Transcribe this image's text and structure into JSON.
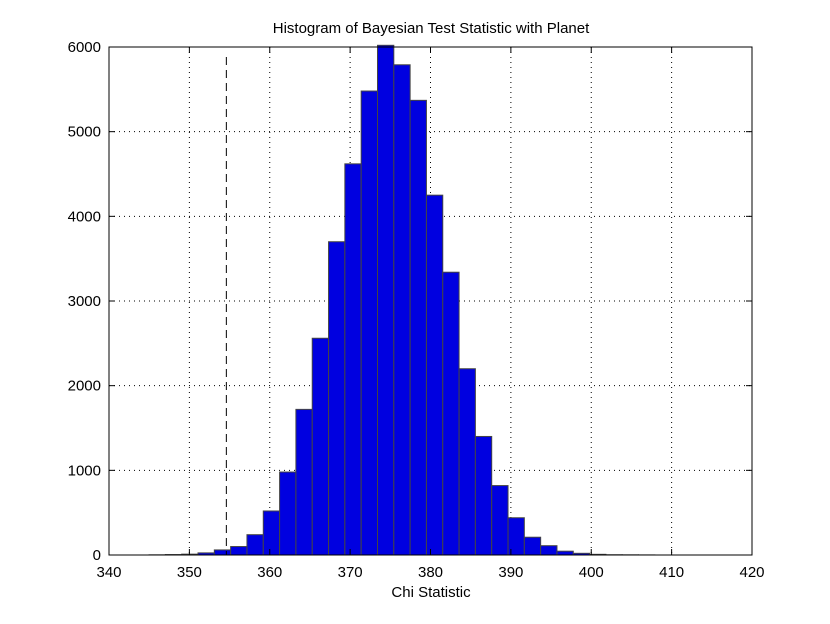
{
  "chart_data": {
    "type": "bar",
    "title": "Histogram of Bayesian Test Statistic with Planet",
    "xlabel": "Chi Statistic",
    "ylabel": "",
    "xlim": [
      340,
      420
    ],
    "ylim": [
      0,
      6000
    ],
    "xticks": [
      340,
      350,
      360,
      370,
      380,
      390,
      400,
      410,
      420
    ],
    "yticks": [
      0,
      1000,
      2000,
      3000,
      4000,
      5000,
      6000
    ],
    "grid": true,
    "bar_color": "#0000e0",
    "bar_edge_color": "#444444",
    "bin_width": 2.03,
    "bin_centers": [
      346.0,
      348.03,
      350.06,
      352.09,
      354.12,
      356.15,
      358.18,
      360.21,
      362.24,
      364.27,
      366.3,
      368.33,
      370.36,
      372.39,
      374.42,
      376.45,
      378.48,
      380.51,
      382.54,
      384.57,
      386.6,
      388.63,
      390.66,
      392.69,
      394.72,
      396.75,
      398.78,
      400.81,
      402.84,
      404.87,
      406.9,
      408.93,
      410.96,
      412.99,
      415.02
    ],
    "values": [
      2,
      5,
      10,
      25,
      60,
      100,
      240,
      520,
      980,
      1720,
      2560,
      3700,
      4620,
      5480,
      6020,
      5790,
      5370,
      4250,
      3340,
      2200,
      1400,
      820,
      440,
      210,
      110,
      45,
      20,
      8,
      3,
      2,
      1,
      0,
      0,
      0,
      0
    ],
    "observed_line": {
      "x": 354.6,
      "style": "dashed"
    }
  }
}
